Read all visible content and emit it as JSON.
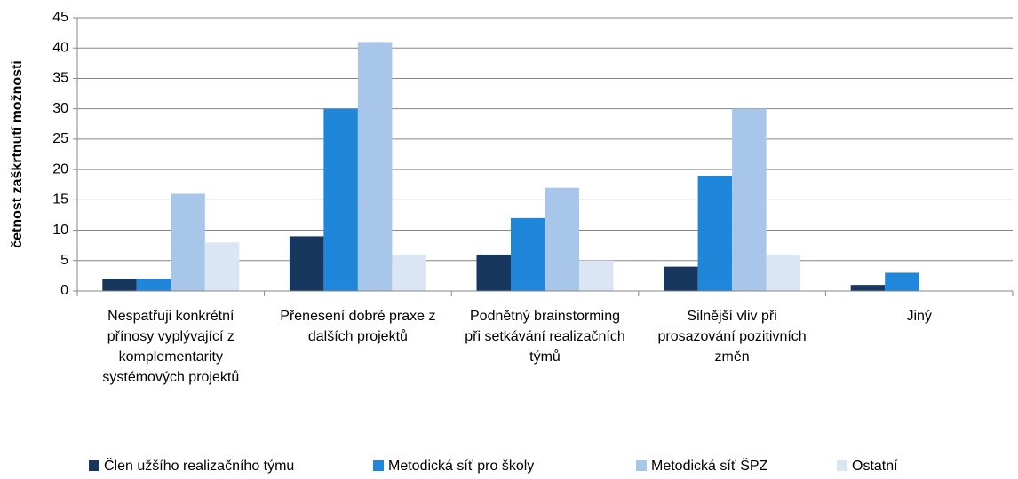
{
  "chart_data": {
    "type": "bar",
    "y_label": "četnost zaškrtnutí možnosti",
    "categories": [
      "Nespatřuji konkrétní přínosy vyplývající z komplementarity systémových projektů",
      "Přenesení dobré praxe z dalších projektů",
      "Podnětný brainstorming při setkávání realizačních týmů",
      "Silnější vliv při prosazování pozitivních změn",
      "Jiný"
    ],
    "series": [
      {
        "name": "Člen užšího realizačního týmu",
        "color": "#17375e",
        "values": [
          2,
          9,
          6,
          4,
          1
        ]
      },
      {
        "name": "Metodická síť pro školy",
        "color": "#1f86d9",
        "values": [
          2,
          30,
          12,
          19,
          3
        ]
      },
      {
        "name": "Metodická síť ŠPZ",
        "color": "#a8c6ea",
        "values": [
          16,
          41,
          17,
          30,
          0
        ]
      },
      {
        "name": "Ostatní",
        "color": "#dbe6f5",
        "values": [
          8,
          6,
          5,
          6,
          0
        ]
      }
    ],
    "ylim": [
      0,
      45
    ],
    "yticks": [
      0,
      5,
      10,
      15,
      20,
      25,
      30,
      35,
      40,
      45
    ],
    "grid": true,
    "legend": "bottom"
  }
}
